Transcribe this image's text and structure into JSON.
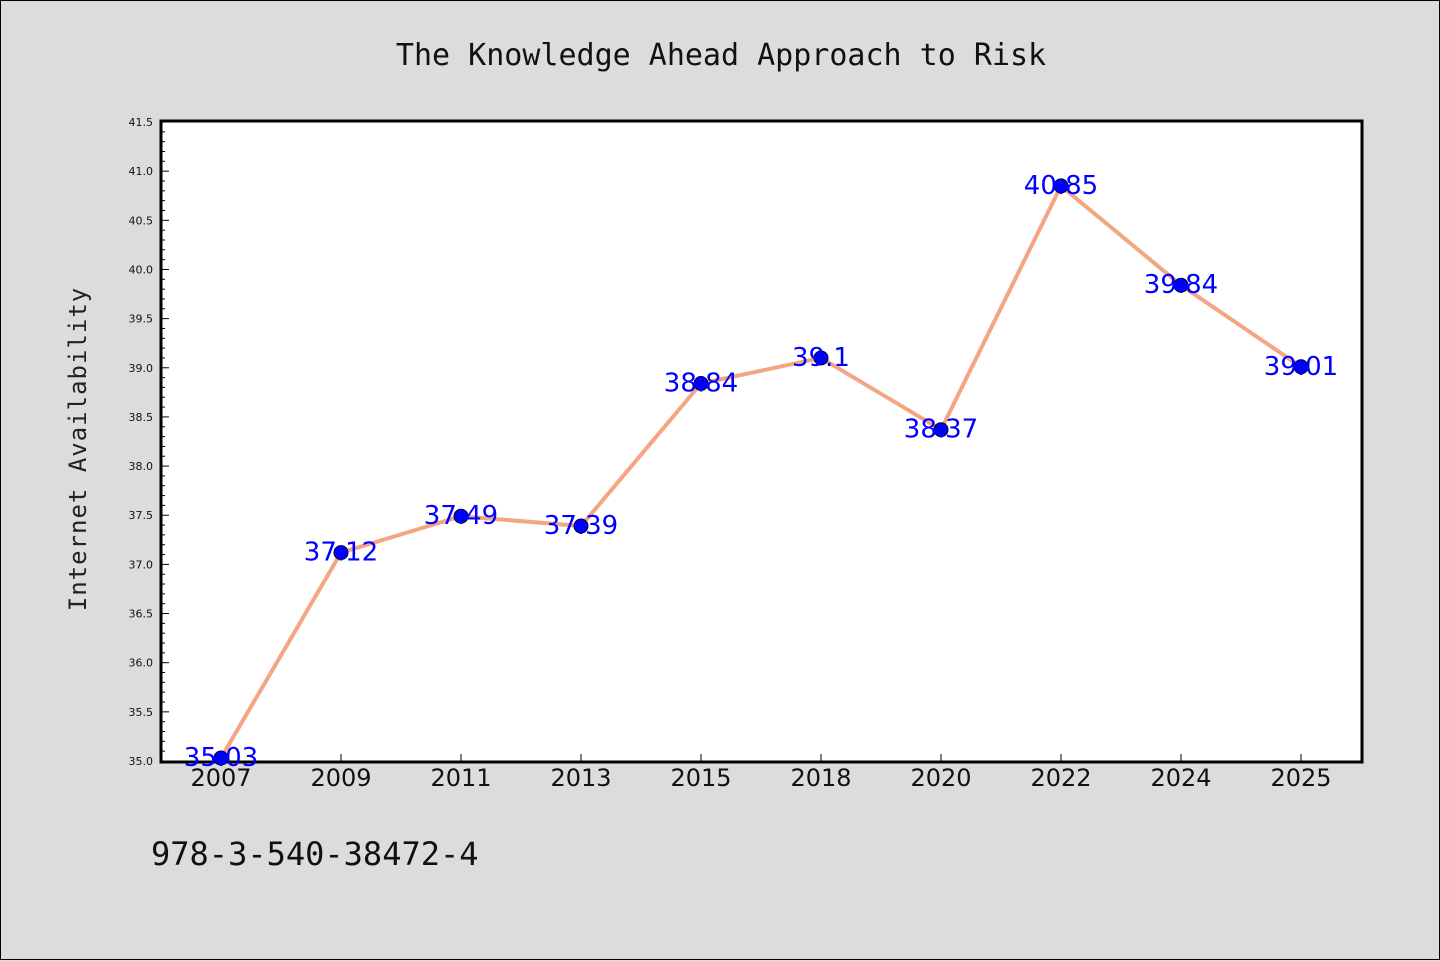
{
  "chart_data": {
    "type": "line",
    "title": "The Knowledge Ahead Approach to Risk",
    "xlabel": "",
    "ylabel": "Internet Availability",
    "categories": [
      "2007",
      "2009",
      "2011",
      "2013",
      "2015",
      "2018",
      "2020",
      "2022",
      "2024",
      "2025"
    ],
    "values": [
      35.03,
      37.12,
      37.49,
      37.39,
      38.84,
      39.1,
      38.37,
      40.85,
      39.84,
      39.01
    ],
    "data_labels": [
      "35.03",
      "37.12",
      "37.49",
      "37.39",
      "38.84",
      "39.1",
      "38.37",
      "40.85",
      "39.84",
      "39.01"
    ],
    "ylim": [
      35.0,
      41.5
    ],
    "yticks": [
      "35.0",
      "35.5",
      "36.0",
      "36.5",
      "37.0",
      "37.5",
      "38.0",
      "38.5",
      "39.0",
      "39.5",
      "40.0",
      "40.5",
      "41.0",
      "41.5"
    ],
    "grid": false,
    "line_color": "#f4a582",
    "marker_color": "#0000ff",
    "label_color": "#0000ff"
  },
  "footer_text": "978-3-540-38472-4"
}
